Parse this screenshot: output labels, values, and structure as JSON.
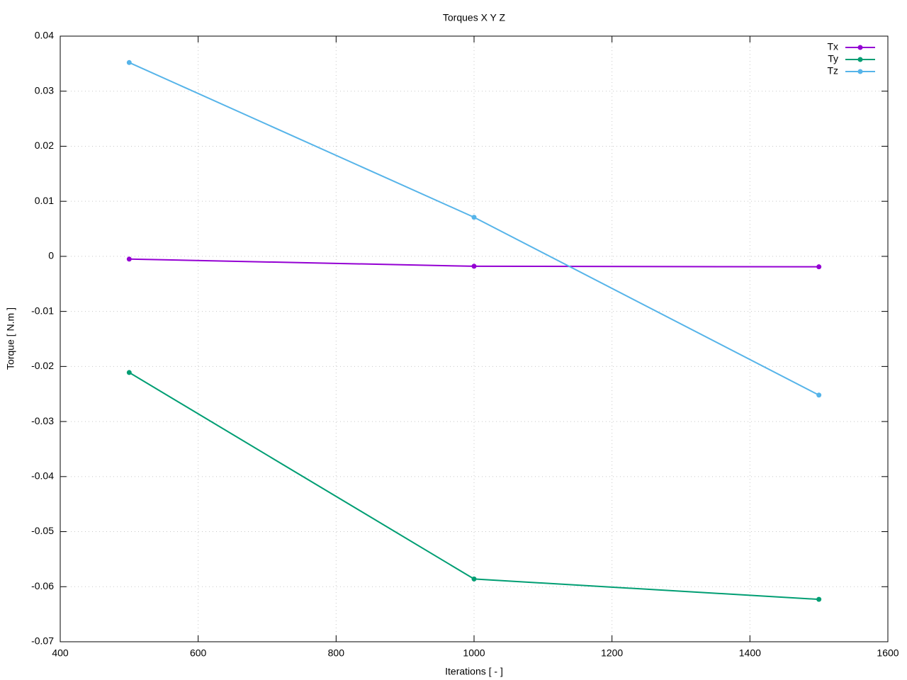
{
  "chart_data": {
    "type": "line",
    "title": "Torques X Y Z",
    "x_label": "Iterations [ - ]",
    "y_label": "Torque [ N.m ]",
    "x": [
      500,
      1000,
      1500
    ],
    "series": [
      {
        "name": "Tx",
        "color": "#9400d3",
        "values": [
          -0.0005,
          -0.0018,
          -0.0019
        ]
      },
      {
        "name": "Ty",
        "color": "#009e73",
        "values": [
          -0.0211,
          -0.0586,
          -0.0623
        ]
      },
      {
        "name": "Tz",
        "color": "#56b4e9",
        "values": [
          0.0352,
          0.0071,
          -0.0252
        ]
      }
    ],
    "xlim": [
      400,
      1600
    ],
    "xticks": [
      400,
      600,
      800,
      1000,
      1200,
      1400,
      1600
    ],
    "ylim": [
      -0.07,
      0.04
    ],
    "yticks": [
      -0.07,
      -0.06,
      -0.05,
      -0.04,
      -0.03,
      -0.02,
      -0.01,
      0,
      0.01,
      0.02,
      0.03,
      0.04
    ],
    "grid": true,
    "legend": "top-right"
  }
}
